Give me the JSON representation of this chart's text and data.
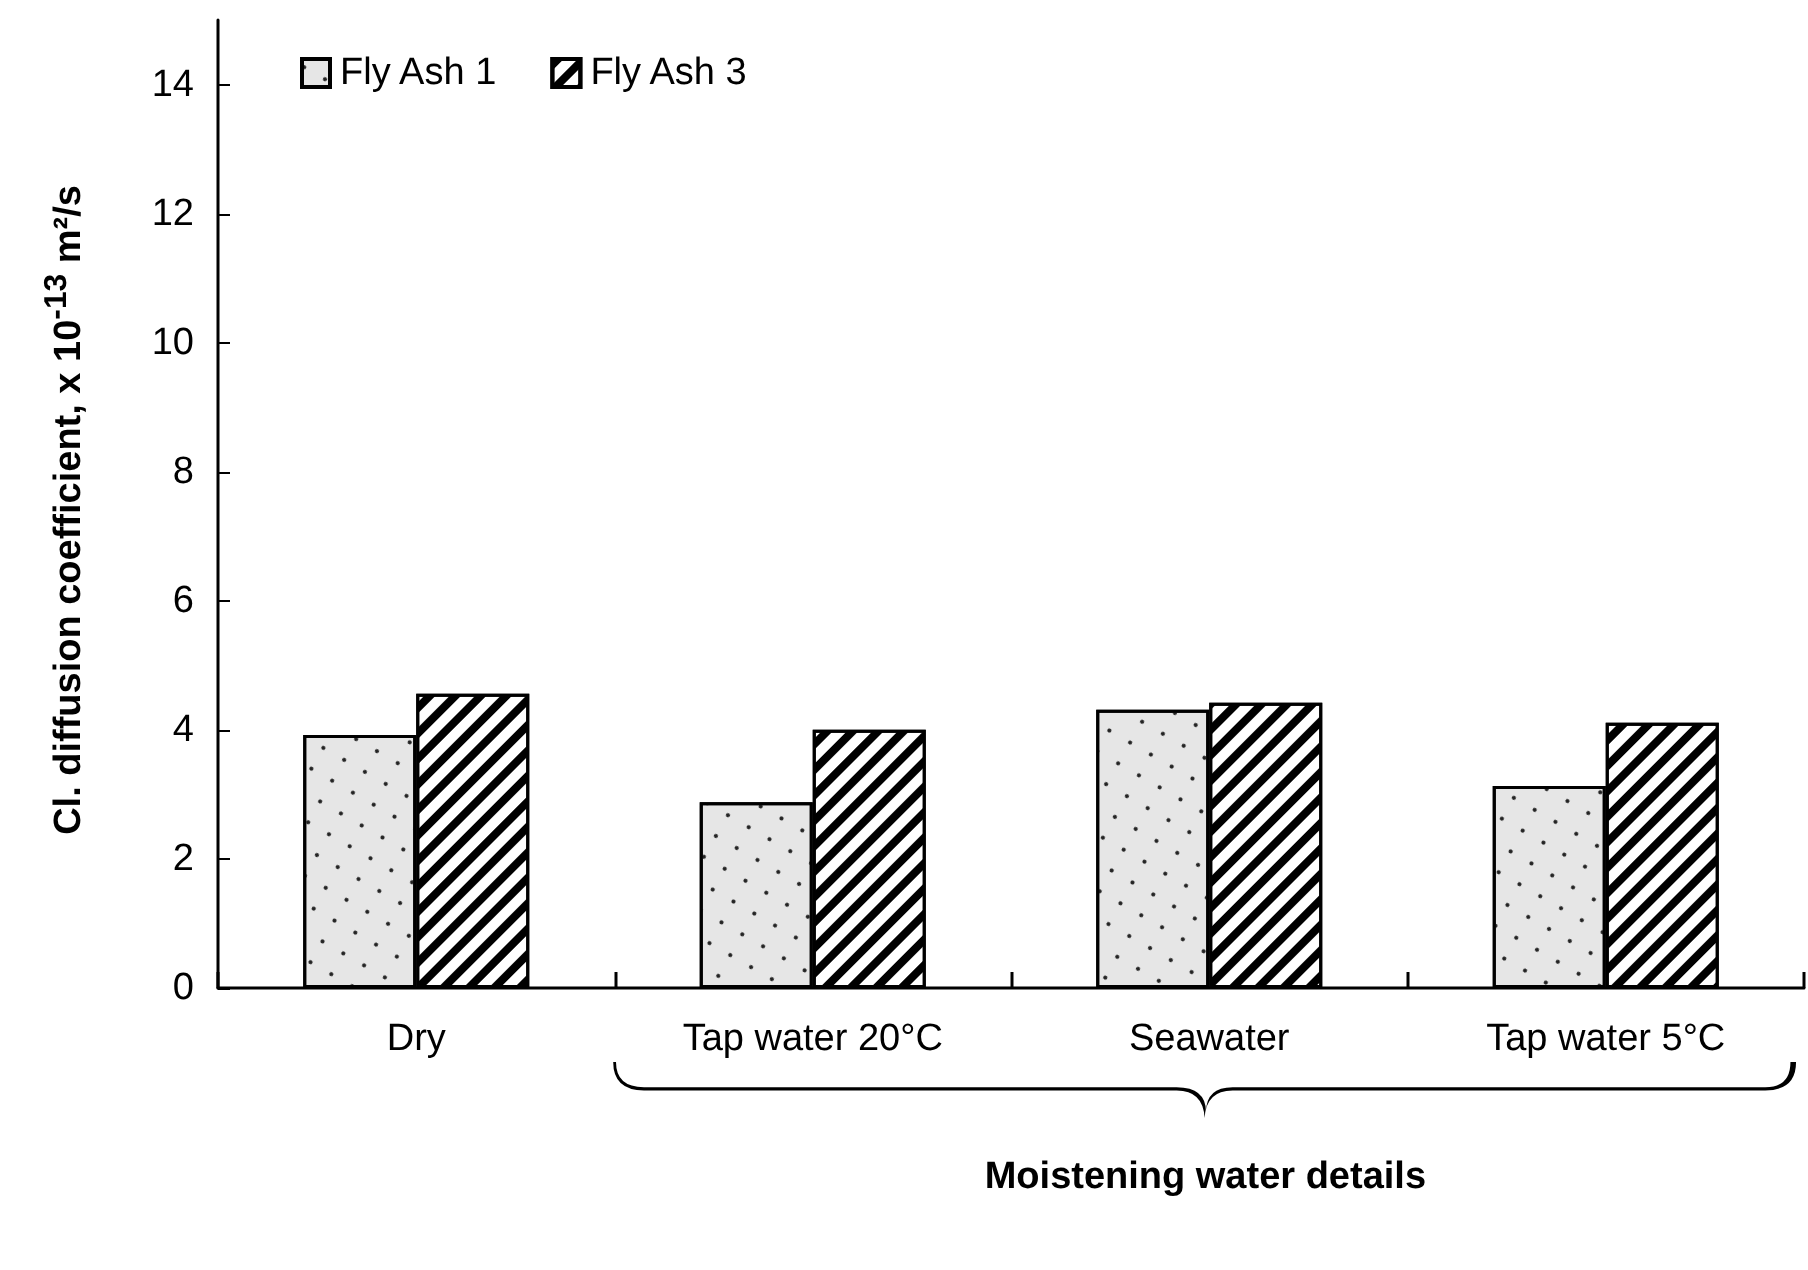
{
  "chart_data": {
    "type": "bar",
    "xlabel": "Moistening water details",
    "ylabel": "Cl. diffusion coefficient, x 10$^{-13}$ m²/s",
    "categories": [
      "Dry",
      "Tap water 20°C",
      "Seawater",
      "Tap water 5°C"
    ],
    "series": [
      {
        "name": "Fly Ash 1",
        "color": "#e6e6e6",
        "values": [
          3.92,
          2.88,
          4.31,
          3.13
        ]
      },
      {
        "name": "Fly Ash 3",
        "color": "#ffffff",
        "values": [
          4.56,
          4.0,
          4.42,
          4.11
        ]
      }
    ],
    "ylim": [
      0,
      15
    ],
    "yticks": [
      0,
      2,
      4,
      6,
      8,
      10,
      12,
      14
    ],
    "grid": false,
    "legend": "top left"
  }
}
